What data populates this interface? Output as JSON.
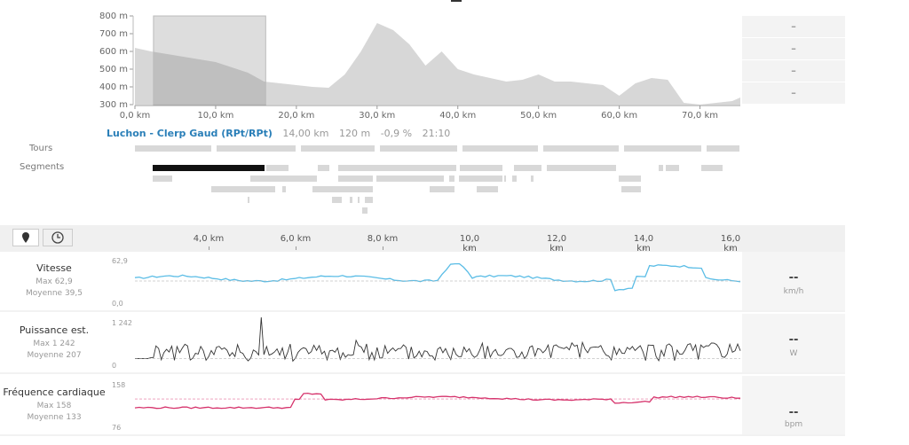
{
  "elevation": {
    "y_ticks": [
      "800 m",
      "700 m",
      "600 m",
      "500 m",
      "400 m",
      "300 m"
    ],
    "x_ticks": [
      "0,0 km",
      "10,0 km",
      "20,0 km",
      "30,0 km",
      "40,0 km",
      "50,0 km",
      "60,0 km",
      "70,0 km"
    ],
    "profile": [
      [
        0,
        620
      ],
      [
        2,
        600
      ],
      [
        4,
        585
      ],
      [
        6,
        570
      ],
      [
        8,
        555
      ],
      [
        10,
        540
      ],
      [
        12,
        510
      ],
      [
        14,
        480
      ],
      [
        16,
        430
      ],
      [
        18,
        420
      ],
      [
        20,
        410
      ],
      [
        22,
        400
      ],
      [
        24,
        395
      ],
      [
        26,
        470
      ],
      [
        28,
        600
      ],
      [
        30,
        760
      ],
      [
        32,
        720
      ],
      [
        34,
        640
      ],
      [
        36,
        520
      ],
      [
        38,
        600
      ],
      [
        40,
        500
      ],
      [
        42,
        470
      ],
      [
        44,
        450
      ],
      [
        46,
        430
      ],
      [
        48,
        440
      ],
      [
        50,
        470
      ],
      [
        52,
        430
      ],
      [
        54,
        430
      ],
      [
        56,
        420
      ],
      [
        58,
        410
      ],
      [
        60,
        350
      ],
      [
        62,
        420
      ],
      [
        64,
        450
      ],
      [
        66,
        440
      ],
      [
        68,
        310
      ],
      [
        70,
        300
      ],
      [
        72,
        310
      ],
      [
        74,
        320
      ],
      [
        75,
        340
      ]
    ],
    "selection_km": [
      2.3,
      16.2
    ],
    "right_cells": [
      "–",
      "–",
      "–",
      "–"
    ]
  },
  "segment_info": {
    "name": "Luchon - Clerp Gaud (RPt/RPt)",
    "distance": "14,00 km",
    "elevation": "120 m",
    "grade": "-0,9 %",
    "time": "21:10"
  },
  "rows": {
    "tours_label": "Tours",
    "segments_label": "Segments"
  },
  "toolbar": {
    "map_icon": "map-pin-icon",
    "clock_icon": "clock-icon",
    "x_ticks": [
      "4,0 km",
      "6,0 km",
      "8,0 km",
      "10,0 km",
      "12,0 km",
      "14,0 km",
      "16,0 km"
    ]
  },
  "metrics": [
    {
      "name": "Vitesse",
      "max": "Max 62,9",
      "avg": "Moyenne 39,5",
      "top": "62,9",
      "bottom": "0,0",
      "value": "--",
      "unit": "km/h",
      "color": "#5bbde6"
    },
    {
      "name": "Puissance est.",
      "max": "Max 1 242",
      "avg": "Moyenne 207",
      "top": "1 242",
      "bottom": "0",
      "value": "--",
      "unit": "W",
      "color": "#333333"
    },
    {
      "name": "Fréquence cardiaque",
      "max": "Max 158",
      "avg": "Moyenne 133",
      "top": "158",
      "bottom": "76",
      "value": "--",
      "unit": "bpm",
      "color": "#d6336c"
    }
  ]
}
